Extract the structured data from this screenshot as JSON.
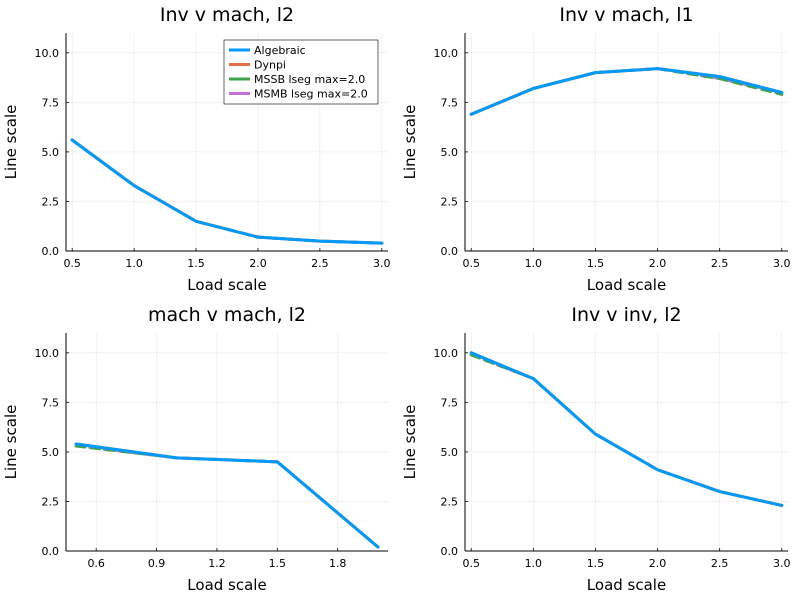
{
  "chart_data": [
    {
      "type": "line",
      "title": "Inv v mach, l2",
      "xlabel": "Load scale",
      "ylabel": "Line scale",
      "xlim": [
        0.45,
        3.05
      ],
      "ylim": [
        0,
        11
      ],
      "xticks": [
        0.5,
        1.0,
        1.5,
        2.0,
        2.5,
        3.0
      ],
      "xtick_labels": [
        "0.5",
        "1.0",
        "1.5",
        "2.0",
        "2.5",
        "3.0"
      ],
      "yticks": [
        0,
        2.5,
        5,
        7.5,
        10
      ],
      "ytick_labels": [
        "0.0",
        "2.5",
        "5.0",
        "7.5",
        "10.0"
      ],
      "grid": true,
      "legend": {
        "position": "top-right",
        "entries": [
          "Algebraic",
          "Dynpi",
          "MSSB lseg max=2.0",
          "MSMB lseg max=2.0"
        ]
      },
      "x": [
        0.5,
        1.0,
        1.5,
        2.0,
        2.5,
        3.0
      ],
      "series": [
        {
          "name": "Algebraic",
          "color": "#009AFA",
          "values": [
            5.6,
            3.3,
            1.5,
            0.7,
            0.5,
            0.4
          ]
        },
        {
          "name": "Dynpi",
          "color": "#E36F47",
          "values": [
            5.6,
            3.3,
            1.5,
            0.7,
            0.5,
            0.4
          ]
        },
        {
          "name": "MSSB lseg max=2.0",
          "color": "#3EA44E",
          "values": [
            5.6,
            3.3,
            1.5,
            0.7,
            0.5,
            0.4
          ]
        },
        {
          "name": "MSMB lseg max=2.0",
          "color": "#C371D2",
          "values": [
            5.6,
            3.3,
            1.5,
            0.7,
            0.5,
            0.4
          ]
        }
      ]
    },
    {
      "type": "line",
      "title": "Inv v mach, l1",
      "xlabel": "Load scale",
      "ylabel": "Line scale",
      "xlim": [
        0.45,
        3.05
      ],
      "ylim": [
        0,
        11
      ],
      "xticks": [
        0.5,
        1.0,
        1.5,
        2.0,
        2.5,
        3.0
      ],
      "xtick_labels": [
        "0.5",
        "1.0",
        "1.5",
        "2.0",
        "2.5",
        "3.0"
      ],
      "yticks": [
        0,
        2.5,
        5,
        7.5,
        10
      ],
      "ytick_labels": [
        "0.0",
        "2.5",
        "5.0",
        "7.5",
        "10.0"
      ],
      "grid": true,
      "x": [
        0.5,
        1.0,
        1.5,
        2.0,
        2.5,
        3.0
      ],
      "series": [
        {
          "name": "Algebraic",
          "color": "#009AFA",
          "values": [
            6.9,
            8.2,
            9.0,
            9.2,
            8.8,
            8.0
          ]
        },
        {
          "name": "Dynpi",
          "color": "#E36F47",
          "values": [
            6.9,
            8.2,
            9.0,
            9.2,
            8.8,
            8.0
          ]
        },
        {
          "name": "MSSB lseg max=2.0",
          "color": "#3EA44E",
          "values": [
            6.9,
            8.2,
            9.0,
            9.2,
            8.7,
            7.9
          ]
        },
        {
          "name": "MSMB lseg max=2.0",
          "color": "#C371D2",
          "values": [
            6.9,
            8.2,
            9.0,
            9.2,
            8.7,
            8.0
          ]
        }
      ]
    },
    {
      "type": "line",
      "title": "mach v mach, l2",
      "xlabel": "Load scale",
      "ylabel": "Line scale",
      "xlim": [
        0.45,
        2.05
      ],
      "ylim": [
        0,
        11
      ],
      "xticks": [
        0.6,
        0.9,
        1.2,
        1.5,
        1.8
      ],
      "xtick_labels": [
        "0.6",
        "0.9",
        "1.2",
        "1.5",
        "1.8"
      ],
      "yticks": [
        0,
        2.5,
        5,
        7.5,
        10
      ],
      "ytick_labels": [
        "0.0",
        "2.5",
        "5.0",
        "7.5",
        "10.0"
      ],
      "grid": true,
      "x": [
        0.5,
        1.0,
        1.5,
        2.0
      ],
      "series": [
        {
          "name": "Algebraic",
          "color": "#009AFA",
          "values": [
            5.4,
            4.7,
            4.5,
            0.2
          ]
        },
        {
          "name": "Dynpi",
          "color": "#E36F47",
          "values": [
            5.4,
            4.7,
            4.5,
            0.2
          ]
        },
        {
          "name": "MSSB lseg max=2.0",
          "color": "#3EA44E",
          "values": [
            5.3,
            4.7,
            4.5,
            0.2
          ]
        },
        {
          "name": "MSMB lseg max=2.0",
          "color": "#C371D2",
          "values": [
            5.3,
            4.7,
            4.5,
            0.2
          ]
        }
      ]
    },
    {
      "type": "line",
      "title": "Inv v inv, l2",
      "xlabel": "Load scale",
      "ylabel": "Line scale",
      "xlim": [
        0.45,
        3.05
      ],
      "ylim": [
        0,
        11
      ],
      "xticks": [
        0.5,
        1.0,
        1.5,
        2.0,
        2.5,
        3.0
      ],
      "xtick_labels": [
        "0.5",
        "1.0",
        "1.5",
        "2.0",
        "2.5",
        "3.0"
      ],
      "yticks": [
        0,
        2.5,
        5,
        7.5,
        10
      ],
      "ytick_labels": [
        "0.0",
        "2.5",
        "5.0",
        "7.5",
        "10.0"
      ],
      "grid": true,
      "x": [
        0.5,
        1.0,
        1.5,
        2.0,
        2.5,
        3.0
      ],
      "series": [
        {
          "name": "Algebraic",
          "color": "#009AFA",
          "values": [
            10.0,
            8.7,
            5.9,
            4.1,
            3.0,
            2.3
          ]
        },
        {
          "name": "Dynpi",
          "color": "#E36F47",
          "values": [
            10.0,
            8.7,
            5.9,
            4.1,
            3.0,
            2.3
          ]
        },
        {
          "name": "MSSB lseg max=2.0",
          "color": "#3EA44E",
          "values": [
            9.9,
            8.7,
            5.9,
            4.1,
            3.0,
            2.3
          ]
        },
        {
          "name": "MSMB lseg max=2.0",
          "color": "#C371D2",
          "values": [
            9.9,
            8.7,
            5.9,
            4.1,
            3.0,
            2.3
          ]
        }
      ]
    }
  ]
}
